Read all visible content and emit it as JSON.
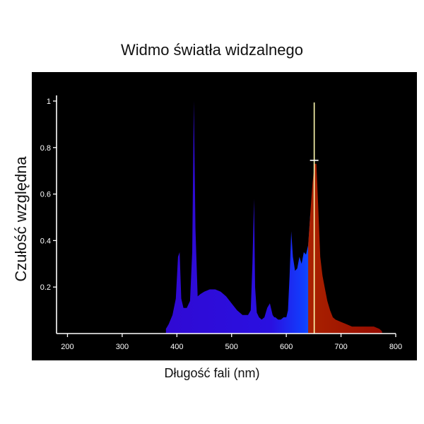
{
  "chart_data": {
    "type": "area",
    "title": "Widmo światła widzalnego",
    "xlabel": "Długość fali (nm)",
    "ylabel": "Czułość względna",
    "xlim": [
      180,
      800
    ],
    "ylim": [
      0,
      1
    ],
    "x_ticks": [
      200,
      300,
      400,
      500,
      600,
      700,
      800
    ],
    "y_ticks": [
      0.2,
      0.4,
      0.6,
      0.8,
      1
    ],
    "y_tick_labels": [
      "0.2",
      "0.4",
      "0.6",
      "0.8",
      "1"
    ],
    "background": "#000000",
    "grid": false,
    "legend": "none",
    "marker_line": {
      "x": 651,
      "y_top": 1.0,
      "color": "#fffbb0"
    },
    "marker_tick": {
      "x": 651,
      "y": 0.745,
      "color": "#ffffff"
    },
    "series": [
      {
        "x": [
          380,
          385,
          392,
          398,
          402,
          405,
          408,
          412,
          418,
          424,
          428,
          431,
          434,
          438,
          443,
          450,
          460,
          470,
          480,
          490,
          500,
          510,
          520,
          530,
          535,
          538,
          541,
          543,
          546,
          550,
          555,
          560,
          565,
          570,
          575,
          578,
          580,
          585,
          590,
          595,
          600,
          603,
          606,
          609,
          612,
          616,
          620,
          624,
          628,
          632,
          636,
          640,
          644,
          648,
          652,
          655,
          658,
          662,
          666,
          670,
          675,
          680,
          685,
          690,
          700,
          710,
          720,
          730,
          740,
          750,
          760,
          770,
          775
        ],
        "y": [
          0.02,
          0.04,
          0.08,
          0.15,
          0.33,
          0.35,
          0.15,
          0.11,
          0.11,
          0.14,
          0.35,
          1.0,
          0.45,
          0.16,
          0.17,
          0.18,
          0.19,
          0.19,
          0.18,
          0.16,
          0.13,
          0.1,
          0.08,
          0.08,
          0.1,
          0.3,
          0.58,
          0.2,
          0.09,
          0.07,
          0.06,
          0.07,
          0.11,
          0.13,
          0.08,
          0.07,
          0.07,
          0.06,
          0.06,
          0.07,
          0.07,
          0.1,
          0.25,
          0.44,
          0.33,
          0.27,
          0.28,
          0.33,
          0.3,
          0.35,
          0.34,
          0.38,
          0.52,
          0.65,
          0.73,
          0.73,
          0.56,
          0.33,
          0.25,
          0.2,
          0.14,
          0.1,
          0.07,
          0.06,
          0.05,
          0.04,
          0.03,
          0.03,
          0.03,
          0.03,
          0.03,
          0.02,
          0.01
        ]
      }
    ]
  }
}
